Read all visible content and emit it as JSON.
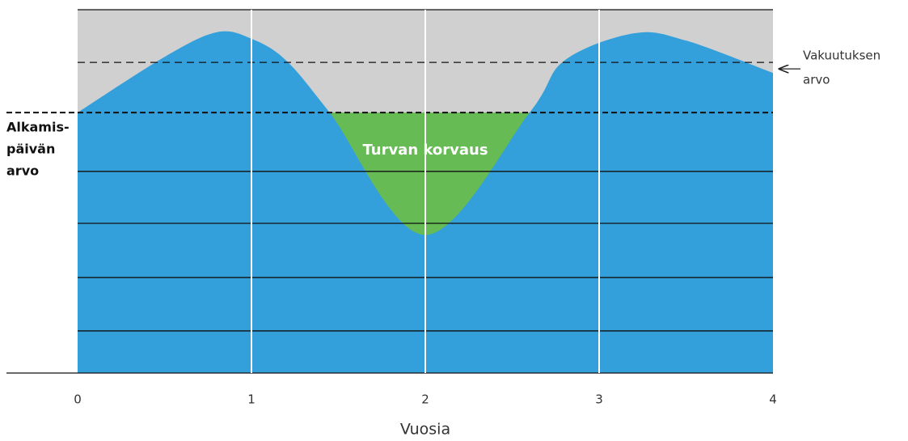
{
  "chart_data": {
    "type": "area",
    "xlabel": "Vuosia",
    "x": [
      0,
      0.5,
      0.8,
      1,
      1.2,
      1.45,
      2,
      2.6,
      2.8,
      3.2,
      3.5,
      4
    ],
    "values": [
      71.7,
      87,
      93.8,
      92,
      86,
      71.7,
      38,
      71.7,
      86,
      93.5,
      91.5,
      82.6
    ],
    "color": "#33a0db",
    "background_color": "#d0d0d0",
    "fill_color": "#66bb55",
    "xlim": [
      0,
      4
    ],
    "xticks": [
      0,
      1,
      2,
      3,
      4
    ],
    "ylim": [
      0,
      100
    ],
    "yticks": [
      0,
      11.6,
      26.3,
      41.2,
      55.5,
      100
    ],
    "grid": true,
    "insured_value": {
      "value": 85.5,
      "label": [
        "Vakuutuksen",
        "arvo"
      ]
    },
    "start_value": {
      "value": 71.7,
      "label": [
        "Alkamis-",
        "päivän",
        "arvo"
      ]
    },
    "fill_label": "Turvan korvaus"
  }
}
